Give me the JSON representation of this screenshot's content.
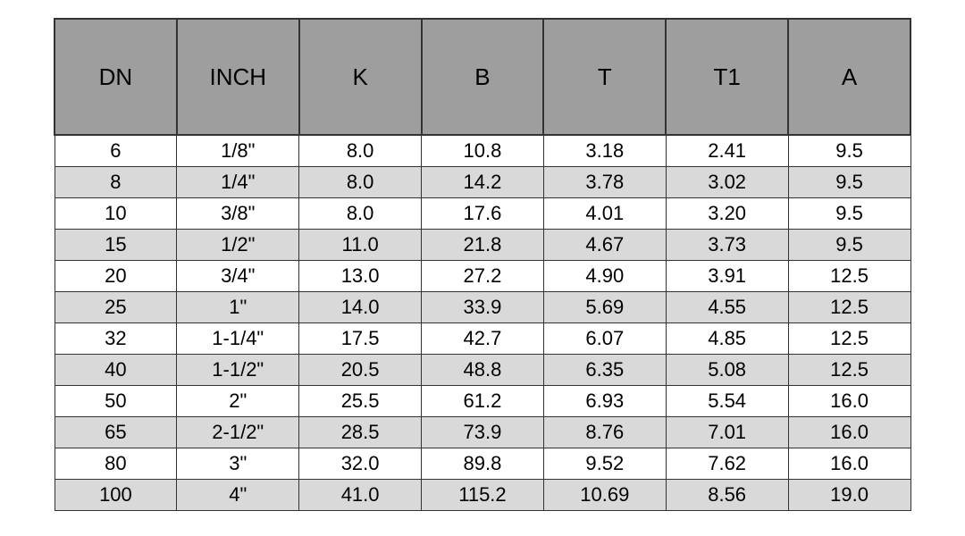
{
  "table": {
    "type": "table",
    "header_bg": "#9e9e9e",
    "row_odd_bg": "#ffffff",
    "row_even_bg": "#d9d9d9",
    "border_color": "#333333",
    "text_color": "#000000",
    "header_fontsize": 26,
    "cell_fontsize": 22,
    "columns": [
      "DN",
      "INCH",
      "K",
      "B",
      "T",
      "T1",
      "A"
    ],
    "rows": [
      [
        "6",
        "1/8\"",
        "8.0",
        "10.8",
        "3.18",
        "2.41",
        "9.5"
      ],
      [
        "8",
        "1/4\"",
        "8.0",
        "14.2",
        "3.78",
        "3.02",
        "9.5"
      ],
      [
        "10",
        "3/8\"",
        "8.0",
        "17.6",
        "4.01",
        "3.20",
        "9.5"
      ],
      [
        "15",
        "1/2\"",
        "11.0",
        "21.8",
        "4.67",
        "3.73",
        "9.5"
      ],
      [
        "20",
        "3/4\"",
        "13.0",
        "27.2",
        "4.90",
        "3.91",
        "12.5"
      ],
      [
        "25",
        "1\"",
        "14.0",
        "33.9",
        "5.69",
        "4.55",
        "12.5"
      ],
      [
        "32",
        "1-1/4\"",
        "17.5",
        "42.7",
        "6.07",
        "4.85",
        "12.5"
      ],
      [
        "40",
        "1-1/2\"",
        "20.5",
        "48.8",
        "6.35",
        "5.08",
        "12.5"
      ],
      [
        "50",
        "2\"",
        "25.5",
        "61.2",
        "6.93",
        "5.54",
        "16.0"
      ],
      [
        "65",
        "2-1/2\"",
        "28.5",
        "73.9",
        "8.76",
        "7.01",
        "16.0"
      ],
      [
        "80",
        "3\"",
        "32.0",
        "89.8",
        "9.52",
        "7.62",
        "16.0"
      ],
      [
        "100",
        "4\"",
        "41.0",
        "115.2",
        "10.69",
        "8.56",
        "19.0"
      ]
    ]
  }
}
